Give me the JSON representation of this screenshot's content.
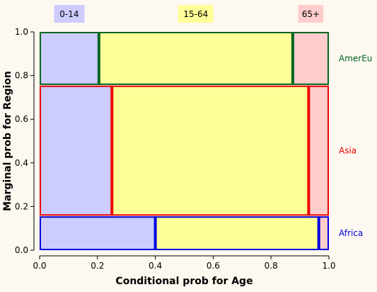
{
  "chart_data": {
    "type": "mosaic",
    "title": "",
    "xlabel": "Conditional prob for Age",
    "ylabel": "Marginal prob for Region",
    "xlim": [
      0,
      1
    ],
    "ylim": [
      0,
      1
    ],
    "xticks": [
      "0.0",
      "0.2",
      "0.4",
      "0.6",
      "0.8",
      "1.0"
    ],
    "yticks": [
      "0.0",
      "0.2",
      "0.4",
      "0.6",
      "0.8",
      "1.0"
    ],
    "grid": false,
    "age_groups": [
      {
        "label": "0-14",
        "color": "#ccccff"
      },
      {
        "label": "15-64",
        "color": "#ffff99"
      },
      {
        "label": "65+",
        "color": "#ffcccc"
      }
    ],
    "regions": [
      {
        "name": "Africa",
        "color": "#0000dd",
        "marginal": [
          0.0,
          0.155
        ],
        "age_cuts": [
          0.0,
          0.4,
          0.965,
          1.0
        ]
      },
      {
        "name": "Asia",
        "color": "#ee0000",
        "marginal": [
          0.158,
          0.754
        ],
        "age_cuts": [
          0.0,
          0.25,
          0.93,
          1.0
        ]
      },
      {
        "name": "AmerEu",
        "color": "#006622",
        "marginal": [
          0.757,
          1.0
        ],
        "age_cuts": [
          0.0,
          0.205,
          0.875,
          1.0
        ]
      }
    ]
  }
}
